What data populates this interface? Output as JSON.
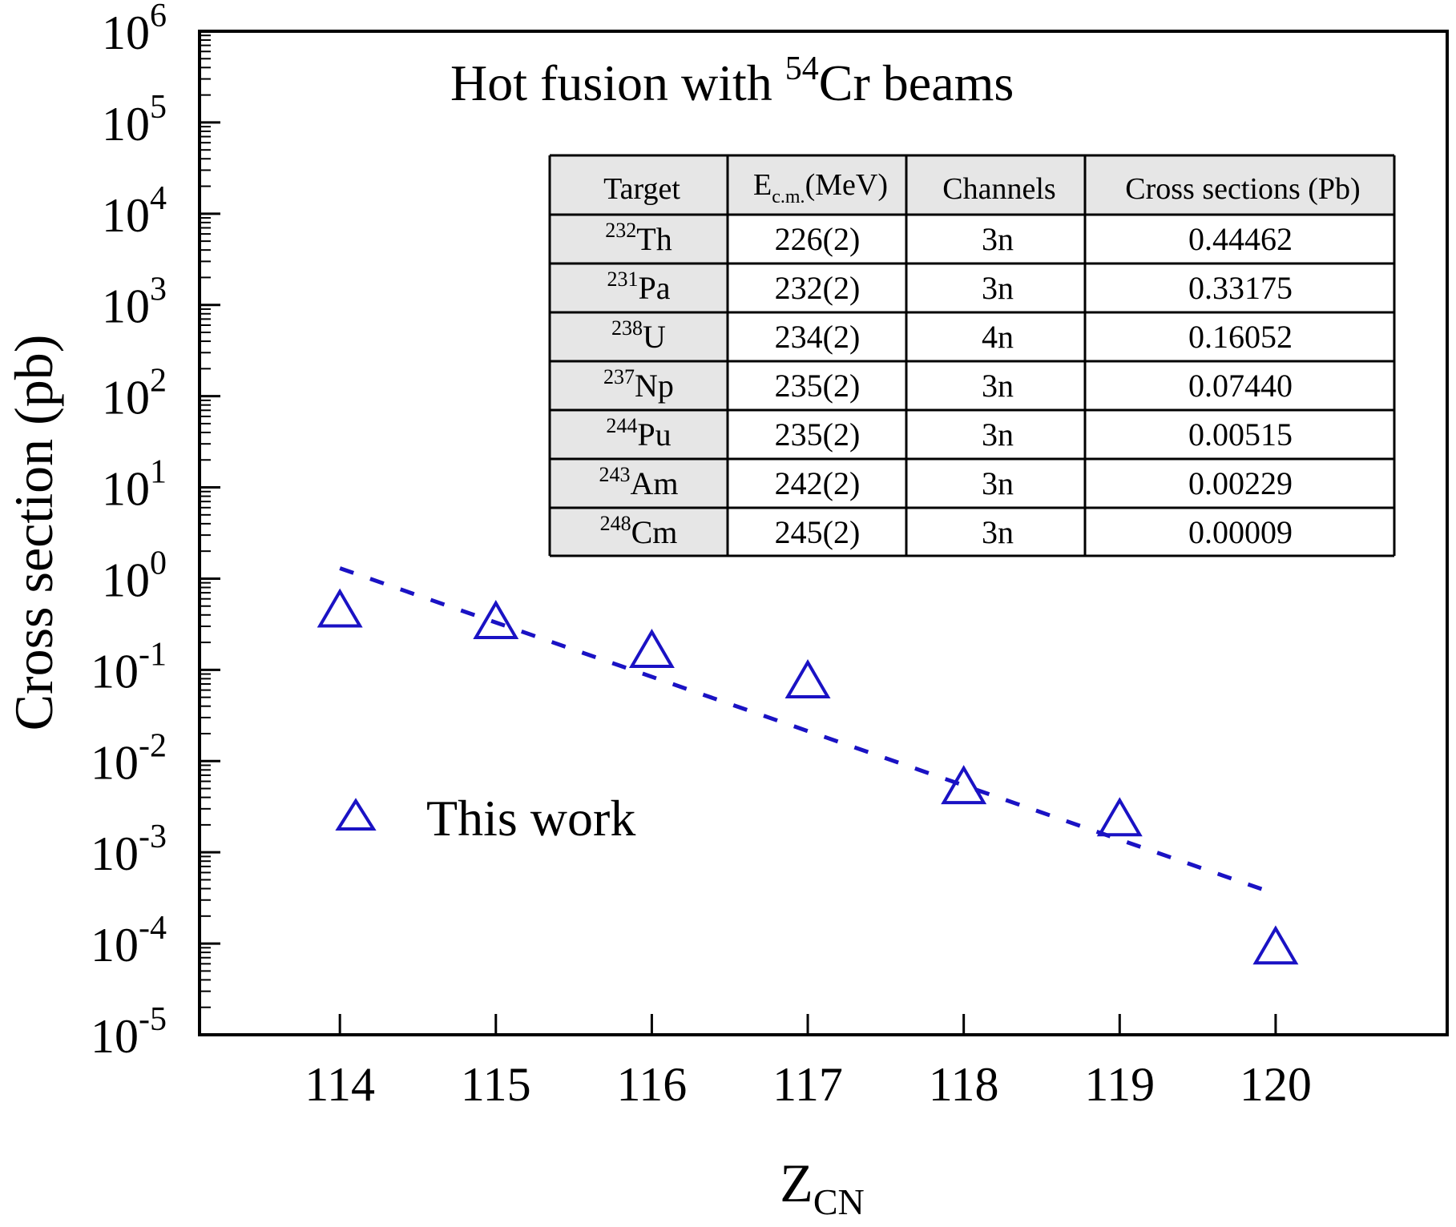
{
  "chart_data": {
    "type": "scatter",
    "title": "Hot fusion with 54Cr beams",
    "title_parts": {
      "prefix": "Hot fusion with ",
      "sup": "54",
      "suffix": "Cr beams"
    },
    "xlabel": {
      "main": "Z",
      "sub": "CN"
    },
    "ylabel": "Cross section (pb)",
    "xlim": [
      113.1,
      121.1
    ],
    "ylim_log10": [
      -5,
      6
    ],
    "y_scale": "log",
    "x_ticks": [
      114,
      115,
      116,
      117,
      118,
      119,
      120
    ],
    "x_tick_labels": [
      "114",
      "115",
      "116",
      "117",
      "118",
      "119",
      "120"
    ],
    "y_ticks_exp": [
      6,
      5,
      4,
      3,
      2,
      1,
      0,
      -1,
      -2,
      -3,
      -4,
      -5
    ],
    "y_tick_labels": [
      {
        "base": "10",
        "exp": "6"
      },
      {
        "base": "10",
        "exp": "5"
      },
      {
        "base": "10",
        "exp": "4"
      },
      {
        "base": "10",
        "exp": "3"
      },
      {
        "base": "10",
        "exp": "2"
      },
      {
        "base": "10",
        "exp": "1"
      },
      {
        "base": "10",
        "exp": "0"
      },
      {
        "base": "10",
        "exp": "-1"
      },
      {
        "base": "10",
        "exp": "-2"
      },
      {
        "base": "10",
        "exp": "-3"
      },
      {
        "base": "10",
        "exp": "-4"
      },
      {
        "base": "10",
        "exp": "-5"
      }
    ],
    "series": [
      {
        "name": "This work",
        "marker": "triangle-open",
        "color": "#1a12c4",
        "x": [
          114,
          115,
          116,
          117,
          118,
          119,
          120
        ],
        "y": [
          0.44462,
          0.33175,
          0.16052,
          0.0744,
          0.00515,
          0.00229,
          9e-05
        ]
      },
      {
        "marker": "dashed-line",
        "color": "#1a12c4",
        "x": [
          114,
          120
        ],
        "y": [
          1.3,
          0.00035
        ]
      }
    ],
    "legend": {
      "position": "lower-left",
      "marker": "triangle-open",
      "label": "This work"
    },
    "grid": false
  },
  "inset_table": {
    "headers": [
      "Target",
      "E",
      "c.m.",
      "(MeV)",
      "Channels",
      "Cross sections (Pb)"
    ],
    "rows": [
      {
        "mass": "232",
        "element": "Th",
        "energy": "226(2)",
        "channel": "3n",
        "xs": "0.44462"
      },
      {
        "mass": "231",
        "element": "Pa",
        "energy": "232(2)",
        "channel": "3n",
        "xs": "0.33175"
      },
      {
        "mass": "238",
        "element": "U",
        "energy": "234(2)",
        "channel": "4n",
        "xs": "0.16052"
      },
      {
        "mass": "237",
        "element": "Np",
        "energy": "235(2)",
        "channel": "3n",
        "xs": "0.07440"
      },
      {
        "mass": "244",
        "element": "Pu",
        "energy": "235(2)",
        "channel": "3n",
        "xs": "0.00515"
      },
      {
        "mass": "243",
        "element": "Am",
        "energy": "242(2)",
        "channel": "3n",
        "xs": "0.00229"
      },
      {
        "mass": "248",
        "element": "Cm",
        "energy": "245(2)",
        "channel": "3n",
        "xs": "0.00009"
      }
    ]
  }
}
